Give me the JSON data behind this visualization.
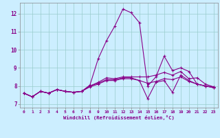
{
  "xlabel": "Windchill (Refroidissement éolien,°C)",
  "background_color": "#cceeff",
  "grid_color": "#99cccc",
  "line_color": "#880088",
  "xlim": [
    -0.5,
    23.5
  ],
  "ylim": [
    6.8,
    12.6
  ],
  "xticks": [
    0,
    1,
    2,
    3,
    4,
    5,
    6,
    7,
    8,
    9,
    10,
    11,
    12,
    13,
    14,
    15,
    16,
    17,
    18,
    19,
    20,
    21,
    22,
    23
  ],
  "yticks": [
    7,
    8,
    9,
    10,
    11,
    12
  ],
  "lines": [
    [
      7.6,
      7.4,
      7.7,
      7.6,
      7.8,
      7.7,
      7.65,
      7.7,
      8.05,
      9.5,
      10.5,
      11.3,
      12.25,
      12.05,
      11.5,
      8.0,
      8.5,
      9.65,
      8.85,
      9.0,
      8.8,
      8.1,
      8.0,
      7.9
    ],
    [
      7.6,
      7.4,
      7.7,
      7.6,
      7.8,
      7.7,
      7.65,
      7.7,
      8.0,
      8.2,
      8.45,
      8.4,
      8.5,
      8.5,
      8.5,
      8.5,
      8.6,
      8.75,
      8.6,
      8.8,
      8.4,
      8.45,
      8.1,
      7.95
    ],
    [
      7.6,
      7.4,
      7.7,
      7.6,
      7.8,
      7.7,
      7.65,
      7.7,
      8.0,
      8.15,
      8.35,
      8.35,
      8.45,
      8.45,
      8.3,
      7.3,
      8.2,
      8.3,
      7.65,
      8.6,
      8.3,
      8.1,
      8.0,
      7.95
    ],
    [
      7.6,
      7.4,
      7.7,
      7.6,
      7.8,
      7.7,
      7.65,
      7.7,
      7.95,
      8.1,
      8.3,
      8.3,
      8.4,
      8.4,
      8.3,
      8.15,
      8.25,
      8.4,
      8.35,
      8.5,
      8.25,
      8.1,
      8.0,
      7.9
    ]
  ]
}
